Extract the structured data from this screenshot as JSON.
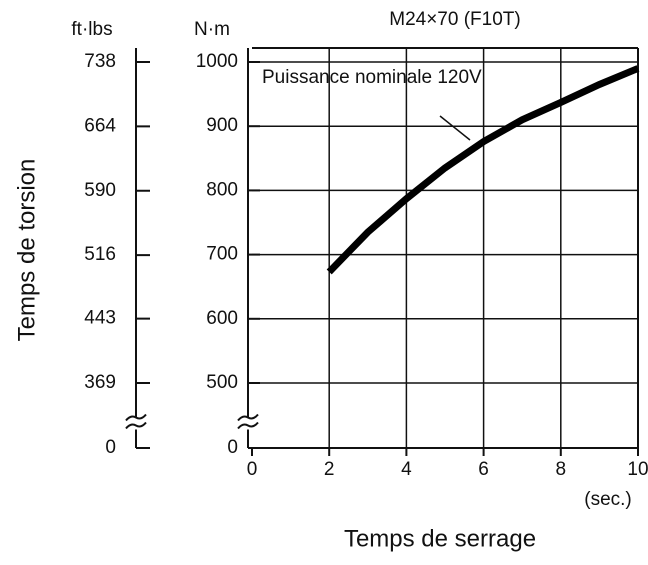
{
  "chart_data": {
    "type": "line",
    "title": "M24×70 (F10T)",
    "x_label": "Temps de serrage",
    "x_unit": "(sec.)",
    "y_label": "Temps de torsion",
    "y_unit": "N·m",
    "y2_unit": "ft·lbs",
    "annotation": "Puissance nominale 120V",
    "x": [
      2,
      3,
      4,
      5,
      6,
      7,
      8,
      9,
      10
    ],
    "series": [
      {
        "name": "Puissance nominale 120V",
        "color": "#000000",
        "values": [
          673,
          735,
          787,
          835,
          876,
          910,
          937,
          965,
          990
        ]
      }
    ],
    "xlim": [
      0,
      10
    ],
    "xticks": [
      0,
      2,
      4,
      6,
      8,
      10
    ],
    "ylim": [
      0,
      1000
    ],
    "yticks": [
      0,
      500,
      600,
      700,
      800,
      900,
      1000
    ],
    "y2lim": [
      0,
      738
    ],
    "y2ticks": [
      0,
      369,
      443,
      516,
      590,
      664,
      738
    ],
    "axis_break": true,
    "grid": true
  }
}
